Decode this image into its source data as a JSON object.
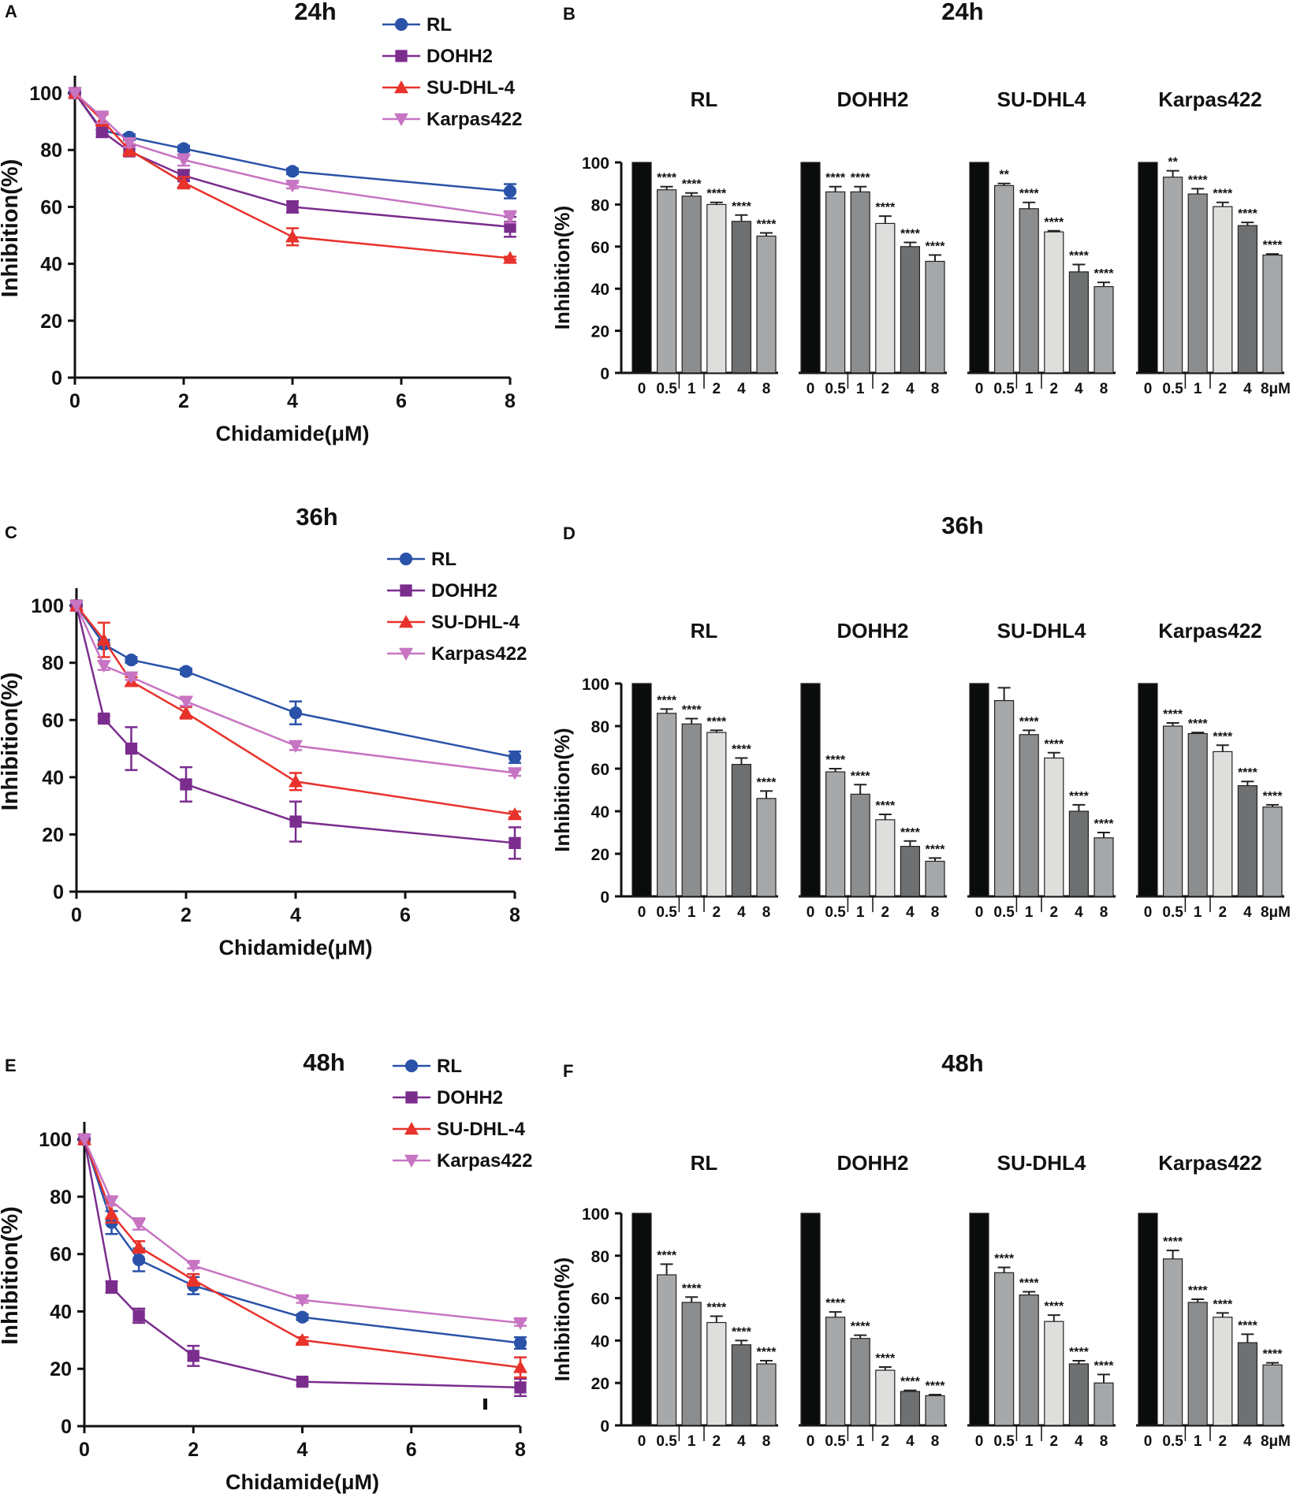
{
  "colors": {
    "RL": "#2a52a8",
    "DOHH2": "#7b2d8e",
    "SU-DHL-4": "#e8322b",
    "Karpas422": "#c774c3",
    "axis": "#111111"
  },
  "chart_data": [
    {
      "panel": "A",
      "type": "line",
      "title": "24h",
      "xlabel": "Chidamide(μM)",
      "ylabel": "Inhibition(%)",
      "xlim": [
        0,
        8
      ],
      "ylim": [
        0,
        105
      ],
      "xticks": [
        0,
        2,
        4,
        6,
        8
      ],
      "yticks": [
        0,
        20,
        40,
        60,
        80,
        100
      ],
      "x": [
        0,
        0.5,
        1,
        2,
        4,
        8
      ],
      "series": [
        {
          "name": "RL",
          "marker": "circle",
          "values": [
            100,
            87,
            84.5,
            80.5,
            72.5,
            65.5
          ],
          "errors": [
            0,
            1.5,
            1,
            1,
            1,
            2.5
          ]
        },
        {
          "name": "DOHH2",
          "marker": "square",
          "values": [
            100,
            86.5,
            79.5,
            71,
            60,
            53
          ],
          "errors": [
            0,
            2,
            1.5,
            2,
            2,
            3.5
          ]
        },
        {
          "name": "SU-DHL-4",
          "marker": "triangle-up",
          "values": [
            100,
            90.5,
            80,
            68.5,
            49.5,
            42
          ],
          "errors": [
            0,
            2,
            2,
            2,
            3,
            0.5
          ]
        },
        {
          "name": "Karpas422",
          "marker": "triangle-down",
          "values": [
            100,
            91.5,
            82.5,
            76.5,
            67.5,
            56.5
          ],
          "errors": [
            0,
            2,
            1.5,
            2,
            1,
            2
          ]
        }
      ]
    },
    {
      "panel": "C",
      "type": "line",
      "title": "36h",
      "xlabel": "Chidamide(μM)",
      "ylabel": "Inhibition(%)",
      "xlim": [
        0,
        8
      ],
      "ylim": [
        0,
        105
      ],
      "xticks": [
        0,
        2,
        4,
        6,
        8
      ],
      "yticks": [
        0,
        20,
        40,
        60,
        80,
        100
      ],
      "x": [
        0,
        0.5,
        1,
        2,
        4,
        8
      ],
      "series": [
        {
          "name": "RL",
          "marker": "circle",
          "values": [
            100,
            86.5,
            81,
            77,
            62.5,
            47
          ],
          "errors": [
            0,
            1.5,
            1,
            1,
            4,
            2
          ]
        },
        {
          "name": "DOHH2",
          "marker": "square",
          "values": [
            100,
            60.5,
            50,
            37.5,
            24.5,
            17
          ],
          "errors": [
            0,
            1,
            7.5,
            6,
            7,
            5.5
          ]
        },
        {
          "name": "SU-DHL-4",
          "marker": "triangle-up",
          "values": [
            100,
            88,
            73.5,
            62.5,
            38.5,
            27
          ],
          "errors": [
            0,
            6,
            1.5,
            2,
            3,
            1
          ]
        },
        {
          "name": "Karpas422",
          "marker": "triangle-down",
          "values": [
            100,
            79,
            75,
            66.5,
            51,
            41.5
          ],
          "errors": [
            0,
            1.5,
            1,
            1.5,
            1.5,
            1
          ]
        }
      ]
    },
    {
      "panel": "E",
      "type": "line",
      "title": "48h",
      "xlabel": "Chidamide(μM)",
      "ylabel": "Inhibition(%)",
      "xlim": [
        0,
        8
      ],
      "ylim": [
        0,
        105
      ],
      "xticks": [
        0,
        2,
        4,
        6,
        8
      ],
      "yticks": [
        0,
        20,
        40,
        60,
        80,
        100
      ],
      "x": [
        0,
        0.5,
        1,
        2,
        4,
        8
      ],
      "series": [
        {
          "name": "RL",
          "marker": "circle",
          "values": [
            100,
            71,
            58,
            49,
            38,
            29
          ],
          "errors": [
            0,
            4,
            4,
            3,
            1,
            2
          ]
        },
        {
          "name": "DOHH2",
          "marker": "square",
          "values": [
            100,
            48.5,
            38.5,
            24.5,
            15.5,
            13.5
          ],
          "errors": [
            0,
            2,
            2.5,
            3.5,
            1,
            3
          ]
        },
        {
          "name": "SU-DHL-4",
          "marker": "triangle-up",
          "values": [
            100,
            74,
            62.5,
            51,
            30,
            20.5
          ],
          "errors": [
            0,
            3,
            2,
            2,
            1,
            3.5
          ]
        },
        {
          "name": "Karpas422",
          "marker": "triangle-down",
          "values": [
            100,
            78.5,
            70.5,
            56,
            44,
            36
          ],
          "errors": [
            0,
            1.5,
            2,
            1,
            1,
            1
          ]
        }
      ]
    },
    {
      "panel": "B",
      "type": "bar",
      "title": "24h",
      "ylabel": "Inhibition(%)",
      "ylim": [
        0,
        100
      ],
      "yticks": [
        0,
        20,
        40,
        60,
        80,
        100
      ],
      "categories": [
        "0",
        "0.5",
        "1",
        "2",
        "4",
        "8"
      ],
      "unit_label": "8μM",
      "groups": [
        {
          "name": "RL",
          "values": [
            100,
            87,
            84,
            80,
            72,
            65
          ],
          "errors": [
            0,
            1.5,
            1.5,
            1,
            3,
            1.5
          ],
          "sig": [
            "",
            "****",
            "****",
            "****",
            "****",
            "****"
          ]
        },
        {
          "name": "DOHH2",
          "values": [
            100,
            86,
            86,
            71,
            60,
            53
          ],
          "errors": [
            0,
            2.5,
            2.5,
            3.5,
            2,
            3
          ],
          "sig": [
            "",
            "****",
            "****",
            "****",
            "****",
            "****"
          ]
        },
        {
          "name": "SU-DHL4",
          "values": [
            100,
            89,
            78,
            67,
            48,
            41
          ],
          "errors": [
            0,
            1,
            3,
            0.5,
            3.5,
            2
          ],
          "sig": [
            "",
            "**",
            "****",
            "****",
            "****",
            "****"
          ]
        },
        {
          "name": "Karpas422",
          "values": [
            100,
            93,
            85,
            79,
            70,
            56
          ],
          "errors": [
            0,
            3,
            2.5,
            2,
            1.5,
            0.5
          ],
          "sig": [
            "",
            "**",
            "****",
            "****",
            "****",
            "****"
          ]
        }
      ]
    },
    {
      "panel": "D",
      "type": "bar",
      "title": "36h",
      "ylabel": "Inhibition(%)",
      "ylim": [
        0,
        100
      ],
      "yticks": [
        0,
        20,
        40,
        60,
        80,
        100
      ],
      "categories": [
        "0",
        "0.5",
        "1",
        "2",
        "4",
        "8"
      ],
      "unit_label": "8μM",
      "groups": [
        {
          "name": "RL",
          "values": [
            100,
            86,
            81,
            77,
            62,
            46
          ],
          "errors": [
            0,
            2,
            2.5,
            1,
            3,
            3.5
          ],
          "sig": [
            "",
            "****",
            "****",
            "****",
            "****",
            "****"
          ]
        },
        {
          "name": "DOHH2",
          "values": [
            100,
            58.5,
            48,
            36,
            23.5,
            16.5
          ],
          "errors": [
            0,
            1.5,
            4.5,
            2.5,
            2.5,
            1.5
          ],
          "sig": [
            "",
            "****",
            "****",
            "****",
            "****",
            "****"
          ]
        },
        {
          "name": "SU-DHL4",
          "values": [
            100,
            92,
            76,
            65,
            40,
            27.5
          ],
          "errors": [
            0,
            6,
            2,
            2.5,
            3,
            2.5
          ],
          "sig": [
            "",
            "",
            "****",
            "****",
            "****",
            "****"
          ]
        },
        {
          "name": "Karpas422",
          "values": [
            100,
            80,
            76.5,
            68,
            52,
            42
          ],
          "errors": [
            0,
            1.5,
            0.5,
            3,
            2,
            1
          ],
          "sig": [
            "",
            "****",
            "****",
            "****",
            "****",
            "****"
          ]
        }
      ]
    },
    {
      "panel": "F",
      "type": "bar",
      "title": "48h",
      "ylabel": "Inhibition(%)",
      "ylim": [
        0,
        100
      ],
      "yticks": [
        0,
        20,
        40,
        60,
        80,
        100
      ],
      "categories": [
        "0",
        "0.5",
        "1",
        "2",
        "4",
        "8"
      ],
      "unit_label": "8μM",
      "groups": [
        {
          "name": "RL",
          "values": [
            100,
            71,
            58,
            48.5,
            38,
            29
          ],
          "errors": [
            0,
            5,
            2.5,
            3,
            2,
            1.5
          ],
          "sig": [
            "",
            "****",
            "****",
            "****",
            "****",
            "****"
          ]
        },
        {
          "name": "DOHH2",
          "values": [
            100,
            51,
            41,
            26,
            16,
            14
          ],
          "errors": [
            0,
            2.5,
            1.5,
            1.5,
            0.5,
            0.5
          ],
          "sig": [
            "",
            "****",
            "****",
            "****",
            "****",
            "****"
          ]
        },
        {
          "name": "SU-DHL4",
          "values": [
            100,
            72,
            61.5,
            49,
            29,
            20
          ],
          "errors": [
            0,
            2.5,
            1.5,
            3,
            1.5,
            4
          ],
          "sig": [
            "",
            "****",
            "****",
            "****",
            "****",
            "****"
          ]
        },
        {
          "name": "Karpas422",
          "values": [
            100,
            78.5,
            58,
            51,
            39,
            28.5
          ],
          "errors": [
            0,
            4,
            1.5,
            2,
            4,
            1
          ],
          "sig": [
            "",
            "****",
            "****",
            "****",
            "****",
            "****"
          ]
        }
      ]
    }
  ]
}
